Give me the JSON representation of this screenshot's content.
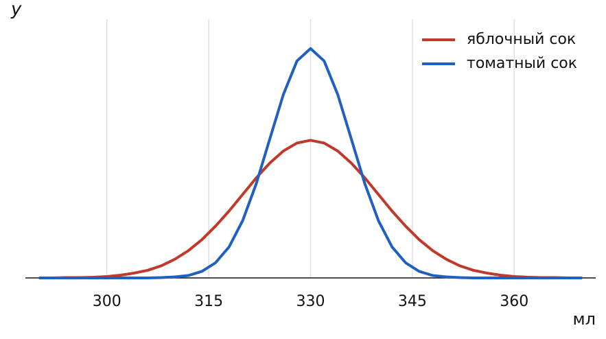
{
  "chart_data": {
    "type": "line",
    "xlabel": "мл",
    "ylabel": "y",
    "x": [
      290,
      292,
      294,
      296,
      298,
      300,
      302,
      304,
      306,
      308,
      310,
      312,
      314,
      316,
      318,
      320,
      322,
      324,
      326,
      328,
      330,
      332,
      334,
      336,
      338,
      340,
      342,
      344,
      346,
      348,
      350,
      352,
      354,
      356,
      358,
      360,
      362,
      364,
      366,
      368,
      370
    ],
    "series": [
      {
        "name": "яблочный сок",
        "color": "#c0392b",
        "values": [
          0,
          0,
          0.0001,
          0.0001,
          0.0002,
          0.0004,
          0.0008,
          0.0014,
          0.0022,
          0.0035,
          0.0054,
          0.0079,
          0.0111,
          0.015,
          0.0194,
          0.0242,
          0.029,
          0.0333,
          0.0368,
          0.0391,
          0.0399,
          0.0391,
          0.0368,
          0.0333,
          0.029,
          0.0242,
          0.0194,
          0.015,
          0.0111,
          0.0079,
          0.0054,
          0.0035,
          0.0022,
          0.0014,
          0.0008,
          0.0004,
          0.0002,
          0.0001,
          0.0001,
          0,
          0
        ]
      },
      {
        "name": "томатный сок",
        "color": "#2060c0",
        "values": [
          0,
          0,
          0,
          0,
          0,
          0,
          0,
          0,
          0,
          0.0001,
          0.0003,
          0.0007,
          0.0019,
          0.0044,
          0.009,
          0.0166,
          0.0273,
          0.0403,
          0.0532,
          0.0629,
          0.0665,
          0.0629,
          0.0532,
          0.0403,
          0.0273,
          0.0166,
          0.009,
          0.0044,
          0.0019,
          0.0007,
          0.0003,
          0.0001,
          0,
          0,
          0,
          0,
          0,
          0,
          0,
          0,
          0
        ]
      }
    ],
    "xlim": [
      288,
      372
    ],
    "ylim": [
      0,
      0.075
    ],
    "xticks": [
      300,
      315,
      330,
      345,
      360
    ],
    "grid": true,
    "legend": "upper right"
  }
}
